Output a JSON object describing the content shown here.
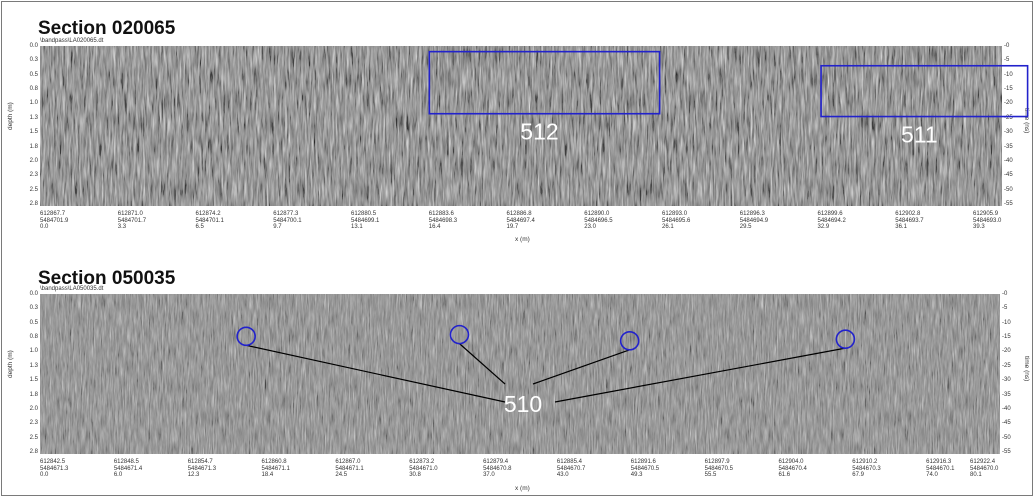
{
  "sections": [
    {
      "title": "Section 020065",
      "file": "\\bandpass\\LA020065.dt",
      "ylabel": "depth (m)",
      "y2label": "time (ns)",
      "xlabel": "x (m)",
      "depth_ticks": [
        "0.0",
        "0.3",
        "0.5",
        "0.8",
        "1.0",
        "1.3",
        "1.5",
        "1.8",
        "2.0",
        "2.3",
        "2.5",
        "2.8"
      ],
      "time_ticks": [
        "0",
        "5",
        "10",
        "15",
        "20",
        "25",
        "30",
        "35",
        "40",
        "45",
        "50",
        "55"
      ],
      "x_ticks": [
        {
          "easting": "612867.7",
          "northing": "5484701.9",
          "x": "0.0"
        },
        {
          "easting": "612871.0",
          "northing": "5484701.7",
          "x": "3.3"
        },
        {
          "easting": "612874.2",
          "northing": "5484701.1",
          "x": "6.5"
        },
        {
          "easting": "612877.3",
          "northing": "5484700.1",
          "x": "9.7"
        },
        {
          "easting": "612880.5",
          "northing": "5484699.1",
          "x": "13.1"
        },
        {
          "easting": "612883.6",
          "northing": "5484698.3",
          "x": "16.4"
        },
        {
          "easting": "612886.8",
          "northing": "5484697.4",
          "x": "19.7"
        },
        {
          "easting": "612890.0",
          "northing": "5484696.5",
          "x": "23.0"
        },
        {
          "easting": "612893.0",
          "northing": "5484695.6",
          "x": "26.1"
        },
        {
          "easting": "612896.3",
          "northing": "5484694.9",
          "x": "29.5"
        },
        {
          "easting": "612899.6",
          "northing": "5484694.2",
          "x": "32.9"
        },
        {
          "easting": "612902.8",
          "northing": "5484693.7",
          "x": "36.1"
        },
        {
          "easting": "612905.9",
          "northing": "5484693.0",
          "x": "39.3"
        }
      ],
      "annotations": [
        {
          "label": "512",
          "x_start": 16.4,
          "x_end": 26.1,
          "depth_top": 0.1,
          "depth_bottom": 1.2
        },
        {
          "label": "511",
          "x_start": 32.9,
          "x_end": 41.6,
          "depth_top": 0.35,
          "depth_bottom": 1.25
        }
      ]
    },
    {
      "title": "Section 050035",
      "file": "\\bandpass\\LA050035.dt",
      "ylabel": "depth (m)",
      "y2label": "time (ns)",
      "xlabel": "x (m)",
      "depth_ticks": [
        "0.0",
        "0.3",
        "0.5",
        "0.8",
        "1.0",
        "1.3",
        "1.5",
        "1.8",
        "2.0",
        "2.3",
        "2.5",
        "2.8"
      ],
      "time_ticks": [
        "0",
        "5",
        "10",
        "15",
        "20",
        "25",
        "30",
        "35",
        "40",
        "45",
        "50",
        "55"
      ],
      "x_ticks": [
        {
          "easting": "612842.5",
          "northing": "5484671.3",
          "x": "0.0"
        },
        {
          "easting": "612848.5",
          "northing": "5484671.4",
          "x": "6.0"
        },
        {
          "easting": "612854.7",
          "northing": "5484671.3",
          "x": "12.3"
        },
        {
          "easting": "612860.8",
          "northing": "5484671.1",
          "x": "18.4"
        },
        {
          "easting": "612867.0",
          "northing": "5484671.1",
          "x": "24.5"
        },
        {
          "easting": "612873.2",
          "northing": "5484671.0",
          "x": "30.8"
        },
        {
          "easting": "612879.4",
          "northing": "5484670.8",
          "x": "37.0"
        },
        {
          "easting": "612885.4",
          "northing": "5484670.7",
          "x": "43.0"
        },
        {
          "easting": "612891.6",
          "northing": "5484670.5",
          "x": "49.3"
        },
        {
          "easting": "612897.9",
          "northing": "5484670.5",
          "x": "55.5"
        },
        {
          "easting": "612904.0",
          "northing": "5484670.4",
          "x": "61.6"
        },
        {
          "easting": "612910.2",
          "northing": "5484670.3",
          "x": "67.9"
        },
        {
          "easting": "612916.3",
          "northing": "5484670.1",
          "x": "74.0"
        },
        {
          "easting": "612922.4",
          "northing": "5484670.0",
          "x": "80.1"
        }
      ],
      "marker_label": "510",
      "markers": [
        {
          "x_m": 17.2,
          "depth": 0.75
        },
        {
          "x_m": 35.0,
          "depth": 0.72
        },
        {
          "x_m": 49.2,
          "depth": 0.83
        },
        {
          "x_m": 67.2,
          "depth": 0.8
        }
      ]
    }
  ],
  "colors": {
    "annotation": "#2222cc",
    "label": "#ffffff",
    "leader": "#000000"
  }
}
